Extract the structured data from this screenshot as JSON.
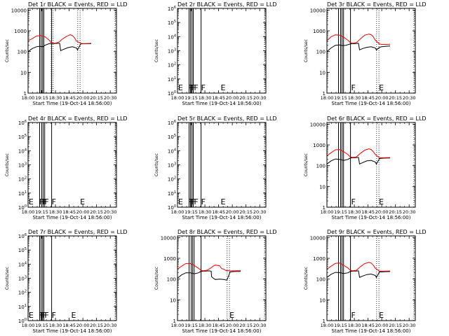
{
  "figure": {
    "x_tick_labels": [
      "18:00",
      "19:15",
      "18:30",
      "18:45",
      "20:00",
      "20:15",
      "20:30"
    ],
    "xlabel": "Start Time (19-Oct-14 18:56:00)",
    "ylabel": "Counts/sec",
    "colors": {
      "events": "#000000",
      "lld": "#ff0000"
    }
  },
  "chart_data": [
    {
      "type": "line",
      "title": "Det 1r BLACK = Events, RED = LLD",
      "yscale": "log",
      "ylim": [
        1,
        12000
      ],
      "y_tick_labels": [
        "1",
        "10",
        "100",
        "1000",
        "10000"
      ],
      "xlim": [
        0,
        42
      ],
      "gaps": [
        [
          11,
          11.9
        ],
        [
          23.6,
          24.7
        ]
      ],
      "vlines": [
        5.5,
        6.2,
        6.9,
        7.5,
        11.2
      ],
      "flags": [],
      "series": [
        {
          "name": "Events",
          "color": "#000000",
          "x": [
            0,
            2,
            4,
            5.5,
            7,
            8,
            10,
            11,
            12,
            13,
            14,
            15,
            15.5,
            17,
            19,
            21,
            23,
            23.5,
            25,
            26,
            28,
            30
          ],
          "y": [
            100,
            140,
            170,
            180,
            170,
            200,
            240,
            250,
            240,
            245,
            250,
            250,
            110,
            130,
            155,
            170,
            150,
            120,
            230,
            240,
            240,
            240
          ]
        },
        {
          "name": "LLD",
          "color": "#ff0000",
          "x": [
            0,
            2,
            4,
            6,
            8,
            10,
            11,
            12,
            13,
            14,
            15,
            16,
            18,
            20,
            21,
            22,
            23,
            25,
            26,
            28,
            30
          ],
          "y": [
            330,
            420,
            560,
            590,
            520,
            360,
            270,
            250,
            255,
            270,
            300,
            380,
            520,
            650,
            600,
            470,
            320,
            250,
            240,
            245,
            250
          ]
        }
      ]
    },
    {
      "type": "line",
      "title": "Det 2r BLACK = Events, RED = LLD",
      "yscale": "log",
      "ylim": [
        1,
        1000000
      ],
      "y_tick_labels": [
        "10^0",
        "10^1",
        "10^2",
        "10^3",
        "10^4",
        "10^5",
        "10^6"
      ],
      "xlim": [
        0,
        42
      ],
      "gaps": [],
      "vlines": [
        5.5,
        6.2,
        6.9,
        7.5,
        11.2
      ],
      "flags": [
        {
          "x": 0.3,
          "label": "E"
        },
        {
          "x": 5.0,
          "label": "F"
        },
        {
          "x": 5.9,
          "label": "F"
        },
        {
          "x": 6.8,
          "label": "F"
        },
        {
          "x": 7.8,
          "label": "F"
        },
        {
          "x": 11.2,
          "label": "F"
        },
        {
          "x": 20.5,
          "label": "E"
        }
      ],
      "series": []
    },
    {
      "type": "line",
      "title": "Det 3r BLACK = Events, RED = LLD",
      "yscale": "log",
      "ylim": [
        1,
        12000
      ],
      "y_tick_labels": [
        "1",
        "10",
        "100",
        "1000",
        "10000"
      ],
      "xlim": [
        0,
        42
      ],
      "gaps": [
        [
          23.6,
          24.7
        ]
      ],
      "vlines": [
        5.5,
        6.5,
        7.2,
        7.9,
        11.2
      ],
      "flags": [
        {
          "x": 11.5,
          "label": "F"
        },
        {
          "x": 24.7,
          "label": "E"
        }
      ],
      "series": [
        {
          "name": "Events",
          "color": "#000000",
          "x": [
            0,
            2,
            4,
            6,
            7,
            9,
            11,
            12,
            13,
            14,
            15,
            15.5,
            17,
            19,
            21,
            23,
            23.5,
            25,
            26,
            28,
            30
          ],
          "y": [
            100,
            150,
            200,
            210,
            195,
            200,
            230,
            240,
            240,
            245,
            250,
            120,
            140,
            160,
            170,
            150,
            120,
            160,
            170,
            180,
            185
          ]
        },
        {
          "name": "LLD",
          "color": "#ff0000",
          "x": [
            0,
            2,
            4,
            6,
            8,
            10,
            11,
            12,
            14,
            16,
            18,
            20,
            21,
            22,
            23,
            25,
            26,
            28,
            30
          ],
          "y": [
            330,
            520,
            640,
            620,
            490,
            350,
            280,
            250,
            270,
            420,
            620,
            700,
            650,
            520,
            350,
            230,
            220,
            220,
            225
          ]
        }
      ]
    },
    {
      "type": "line",
      "title": "Det 4r BLACK = Events, RED = LLD",
      "yscale": "log",
      "ylim": [
        1,
        1000000
      ],
      "y_tick_labels": [
        "10^0",
        "10^1",
        "10^2",
        "10^3",
        "10^4",
        "10^5",
        "10^6"
      ],
      "xlim": [
        0,
        42
      ],
      "gaps": [],
      "vlines": [
        5.5,
        6.5,
        7.2,
        7.9,
        11.2
      ],
      "flags": [
        {
          "x": 0.3,
          "label": "E"
        },
        {
          "x": 5.3,
          "label": "F"
        },
        {
          "x": 6.1,
          "label": "F"
        },
        {
          "x": 6.9,
          "label": "F"
        },
        {
          "x": 7.8,
          "label": "F"
        },
        {
          "x": 11.2,
          "label": "F"
        },
        {
          "x": 24.7,
          "label": "E"
        }
      ],
      "series": []
    },
    {
      "type": "line",
      "title": "Det 5r BLACK = Events, RED = LLD",
      "yscale": "log",
      "ylim": [
        1,
        1000000
      ],
      "y_tick_labels": [
        "10^0",
        "10^1",
        "10^2",
        "10^3",
        "10^4",
        "10^5",
        "10^6"
      ],
      "xlim": [
        0,
        42
      ],
      "gaps": [],
      "vlines": [
        5.5,
        6.2,
        6.9,
        7.5,
        11.2
      ],
      "flags": [
        {
          "x": 0.3,
          "label": "E"
        },
        {
          "x": 5.0,
          "label": "F"
        },
        {
          "x": 5.9,
          "label": "F"
        },
        {
          "x": 6.8,
          "label": "F"
        },
        {
          "x": 7.8,
          "label": "F"
        },
        {
          "x": 11.2,
          "label": "F"
        },
        {
          "x": 20.5,
          "label": "E"
        }
      ],
      "series": []
    },
    {
      "type": "line",
      "title": "Det 6r BLACK = Events, RED = LLD",
      "yscale": "log",
      "ylim": [
        1,
        12000
      ],
      "y_tick_labels": [
        "1",
        "10",
        "100",
        "1000",
        "10000"
      ],
      "xlim": [
        0,
        42
      ],
      "gaps": [
        [
          23.6,
          24.7
        ]
      ],
      "vlines": [
        5.5,
        6.5,
        7.2,
        7.9,
        11.2
      ],
      "flags": [
        {
          "x": 11.5,
          "label": "F"
        },
        {
          "x": 24.7,
          "label": "E"
        }
      ],
      "series": [
        {
          "name": "Events",
          "color": "#000000",
          "x": [
            0,
            2,
            4,
            6,
            8,
            10,
            11,
            12,
            14,
            15,
            15.5,
            17,
            19,
            21,
            23,
            23.5,
            25,
            27,
            30
          ],
          "y": [
            120,
            170,
            210,
            200,
            180,
            200,
            230,
            240,
            245,
            250,
            120,
            140,
            170,
            180,
            150,
            120,
            220,
            230,
            235
          ]
        },
        {
          "name": "LLD",
          "color": "#ff0000",
          "x": [
            0,
            2,
            4,
            6,
            8,
            10,
            11,
            12,
            14,
            16,
            18,
            20,
            21,
            22,
            23,
            25,
            27,
            30
          ],
          "y": [
            300,
            420,
            580,
            600,
            470,
            340,
            270,
            250,
            265,
            400,
            560,
            650,
            600,
            480,
            340,
            240,
            240,
            245
          ]
        }
      ]
    },
    {
      "type": "line",
      "title": "Det 7r BLACK = Events, RED = LLD",
      "yscale": "log",
      "ylim": [
        1,
        1000000
      ],
      "y_tick_labels": [
        "10^0",
        "10^1",
        "10^2",
        "10^3",
        "10^4",
        "10^5",
        "10^6"
      ],
      "xlim": [
        0,
        42
      ],
      "gaps": [],
      "vlines": [
        5.5,
        6.2,
        6.9,
        7.5,
        11.2
      ],
      "flags": [
        {
          "x": 0.3,
          "label": "E"
        },
        {
          "x": 5.0,
          "label": "F"
        },
        {
          "x": 5.9,
          "label": "F"
        },
        {
          "x": 6.8,
          "label": "F"
        },
        {
          "x": 7.8,
          "label": "F"
        },
        {
          "x": 11.2,
          "label": "F"
        },
        {
          "x": 20.5,
          "label": "E"
        }
      ],
      "series": []
    },
    {
      "type": "line",
      "title": "Det 8r BLACK = Events, RED = LLD",
      "yscale": "log",
      "ylim": [
        1,
        12000
      ],
      "y_tick_labels": [
        "1",
        "10",
        "100",
        "1000",
        "10000"
      ],
      "xlim": [
        0,
        42
      ],
      "gaps": [
        [
          23.6,
          24.7
        ]
      ],
      "vlines": [
        5.5,
        6.5,
        7.2,
        7.9,
        11.2
      ],
      "flags": [
        {
          "x": 24.7,
          "label": "E"
        }
      ],
      "series": [
        {
          "name": "Events",
          "color": "#000000",
          "x": [
            0,
            2,
            4,
            6,
            8,
            10,
            11,
            12,
            14,
            15,
            16,
            16.2,
            17,
            18,
            20,
            22,
            23,
            23.5,
            25,
            27,
            30
          ],
          "y": [
            110,
            160,
            200,
            200,
            180,
            200,
            230,
            240,
            245,
            250,
            240,
            130,
            110,
            95,
            100,
            95,
            90,
            90,
            220,
            230,
            235
          ]
        },
        {
          "name": "LLD",
          "color": "#ff0000",
          "x": [
            0,
            2,
            4,
            6,
            8,
            10,
            11,
            12,
            14,
            16,
            17,
            18,
            20,
            21,
            22,
            23,
            25,
            27,
            30
          ],
          "y": [
            300,
            420,
            560,
            570,
            450,
            330,
            270,
            250,
            265,
            350,
            420,
            470,
            440,
            320,
            300,
            260,
            250,
            250,
            255
          ]
        }
      ]
    },
    {
      "type": "line",
      "title": "Det 9r BLACK = Events, RED = LLD",
      "yscale": "log",
      "ylim": [
        1,
        12000
      ],
      "y_tick_labels": [
        "1",
        "10",
        "100",
        "1000",
        "10000"
      ],
      "xlim": [
        0,
        42
      ],
      "gaps": [
        [
          23.6,
          24.7
        ]
      ],
      "vlines": [
        5.5,
        6.5,
        7.2,
        7.9,
        11.2
      ],
      "flags": [
        {
          "x": 11.5,
          "label": "F"
        },
        {
          "x": 24.7,
          "label": "E"
        }
      ],
      "series": [
        {
          "name": "Events",
          "color": "#000000",
          "x": [
            0,
            2,
            4,
            6,
            8,
            10,
            11,
            12,
            14,
            15,
            15.5,
            17,
            19,
            21,
            23,
            23.5,
            25,
            27,
            30
          ],
          "y": [
            120,
            170,
            210,
            205,
            185,
            200,
            230,
            240,
            245,
            250,
            120,
            140,
            165,
            175,
            150,
            120,
            220,
            225,
            230
          ]
        },
        {
          "name": "LLD",
          "color": "#ff0000",
          "x": [
            0,
            2,
            4,
            6,
            8,
            10,
            11,
            12,
            14,
            16,
            18,
            20,
            21,
            22,
            23,
            25,
            27,
            30
          ],
          "y": [
            300,
            420,
            570,
            590,
            460,
            340,
            270,
            250,
            265,
            400,
            560,
            640,
            590,
            470,
            330,
            240,
            240,
            245
          ]
        }
      ]
    }
  ]
}
